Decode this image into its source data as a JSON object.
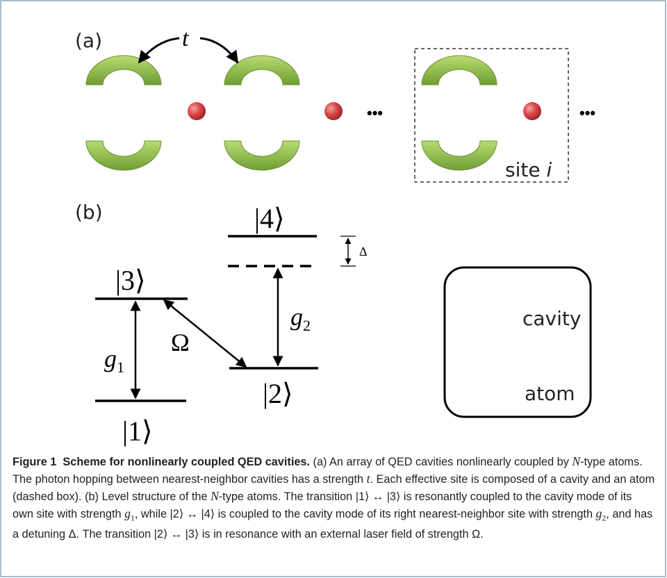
{
  "figure": {
    "panel_a": {
      "label": "(a)",
      "hopping": "t",
      "ellipsis_1": "•••",
      "ellipsis_2": "•••",
      "site_label": {
        "text": "site",
        "index": "i"
      }
    },
    "panel_b": {
      "label": "(b)",
      "level_4": "|4⟩",
      "level_3": "|3⟩",
      "level_2": "|2⟩",
      "level_1": "|1⟩",
      "detuning": "Δ",
      "coupling_1": {
        "symbol": "g",
        "index": "1"
      },
      "coupling_2": {
        "symbol": "g",
        "index": "2"
      },
      "laser": "Ω"
    },
    "legend": {
      "cavity": "cavity",
      "atom": "atom"
    }
  },
  "caption": {
    "label": "Figure 1",
    "heading": "Scheme for nonlinearly coupled QED cavities.",
    "body": [
      "(a) An array of QED cavities nonlinearly coupled by ",
      "N",
      "-type atoms. The photon hopping between nearest-neighbor cavities has a strength ",
      "t",
      ". Each effective site is composed of a cavity and an atom (dashed box). (b) Level structure of the ",
      "N",
      "-type atoms. The transition |1⟩ ↔ |3⟩ is resonantly coupled to the cavity mode of its own site with strength ",
      "g",
      "1",
      ", while |2⟩ ↔ |4⟩ is coupled to the cavity mode of its right nearest-neighbor site with strength ",
      "g",
      "2",
      ", and has a detuning Δ. The transition |2⟩ ↔ |3⟩ is in resonance with an external laser field of strength Ω."
    ]
  }
}
